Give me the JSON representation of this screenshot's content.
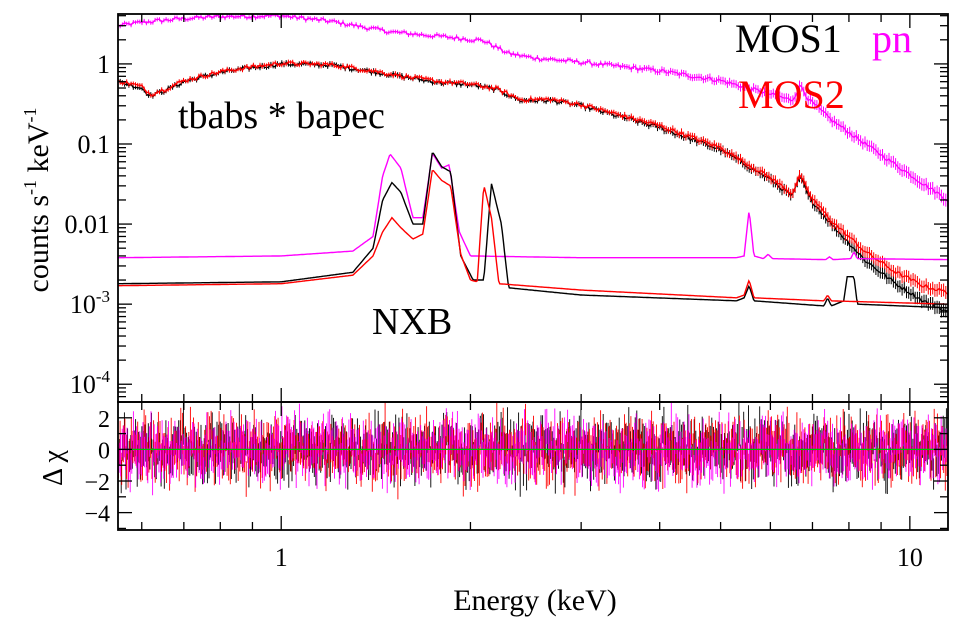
{
  "chart_data": {
    "type": "line",
    "xlabel": "Energy (keV)",
    "x_scale": "log",
    "xlim": [
      0.55,
      11.5
    ],
    "x_ticks": [
      {
        "value": 1,
        "label": "1"
      },
      {
        "value": 10,
        "label": "10"
      }
    ],
    "top_panel": {
      "ylabel_main": "counts s",
      "ylabel_exp1": "-1",
      "ylabel_mid": " keV",
      "ylabel_exp2": "-1",
      "y_scale": "log",
      "ylim": [
        6e-05,
        4.2
      ],
      "y_ticks": [
        {
          "value": 1,
          "label": "1"
        },
        {
          "value": 0.1,
          "label": "0.1"
        },
        {
          "value": 0.01,
          "label": "0.01"
        },
        {
          "value": 0.001,
          "base": "10",
          "exp": "-3"
        },
        {
          "value": 0.0001,
          "base": "10",
          "exp": "-4"
        }
      ],
      "annotations": {
        "model": "tbabs * bapec",
        "background": "NXB"
      },
      "legend": {
        "placement": "top-right",
        "entries": [
          {
            "label": "MOS1",
            "color": "#000000"
          },
          {
            "label": "pn",
            "color": "#ff00ff"
          },
          {
            "label": "MOS2",
            "color": "#ff0000"
          }
        ]
      },
      "series": [
        {
          "name": "pn",
          "role": "source",
          "color": "#ff00ff",
          "points": [
            [
              0.55,
              3.0
            ],
            [
              0.6,
              3.3
            ],
            [
              0.7,
              3.7
            ],
            [
              0.8,
              3.9
            ],
            [
              1.0,
              4.0
            ],
            [
              1.2,
              3.4
            ],
            [
              1.5,
              2.5
            ],
            [
              1.8,
              2.2
            ],
            [
              2.1,
              1.95
            ],
            [
              2.3,
              1.35
            ],
            [
              2.5,
              1.2
            ],
            [
              3.0,
              1.05
            ],
            [
              4.0,
              0.82
            ],
            [
              5.0,
              0.62
            ],
            [
              6.0,
              0.42
            ],
            [
              6.5,
              0.35
            ],
            [
              6.7,
              0.55
            ],
            [
              6.9,
              0.36
            ],
            [
              7.5,
              0.2
            ],
            [
              8.5,
              0.1
            ],
            [
              9.5,
              0.055
            ],
            [
              10.5,
              0.032
            ],
            [
              11.5,
              0.02
            ]
          ]
        },
        {
          "name": "MOS1",
          "role": "source",
          "color": "#000000",
          "points": [
            [
              0.55,
              0.6
            ],
            [
              0.6,
              0.5
            ],
            [
              0.62,
              0.4
            ],
            [
              0.66,
              0.48
            ],
            [
              0.7,
              0.6
            ],
            [
              0.8,
              0.78
            ],
            [
              0.9,
              0.9
            ],
            [
              1.0,
              1.0
            ],
            [
              1.2,
              0.97
            ],
            [
              1.4,
              0.8
            ],
            [
              1.6,
              0.67
            ],
            [
              1.8,
              0.58
            ],
            [
              2.0,
              0.55
            ],
            [
              2.2,
              0.48
            ],
            [
              2.4,
              0.35
            ],
            [
              2.7,
              0.35
            ],
            [
              3.0,
              0.3
            ],
            [
              4.0,
              0.16
            ],
            [
              5.0,
              0.085
            ],
            [
              6.0,
              0.036
            ],
            [
              6.5,
              0.022
            ],
            [
              6.7,
              0.04
            ],
            [
              6.9,
              0.022
            ],
            [
              7.5,
              0.01
            ],
            [
              8.5,
              0.0035
            ],
            [
              9.5,
              0.0018
            ],
            [
              10.5,
              0.0011
            ],
            [
              11.5,
              0.0008
            ]
          ]
        },
        {
          "name": "MOS2",
          "role": "source",
          "color": "#ff0000",
          "points": [
            [
              0.55,
              0.62
            ],
            [
              0.6,
              0.52
            ],
            [
              0.62,
              0.42
            ],
            [
              0.66,
              0.5
            ],
            [
              0.7,
              0.62
            ],
            [
              0.8,
              0.8
            ],
            [
              0.9,
              0.92
            ],
            [
              1.0,
              1.02
            ],
            [
              1.2,
              0.98
            ],
            [
              1.4,
              0.82
            ],
            [
              1.6,
              0.68
            ],
            [
              1.8,
              0.6
            ],
            [
              2.0,
              0.56
            ],
            [
              2.2,
              0.49
            ],
            [
              2.4,
              0.36
            ],
            [
              2.7,
              0.36
            ],
            [
              3.0,
              0.31
            ],
            [
              4.0,
              0.17
            ],
            [
              5.0,
              0.09
            ],
            [
              6.0,
              0.038
            ],
            [
              6.5,
              0.024
            ],
            [
              6.7,
              0.042
            ],
            [
              6.9,
              0.024
            ],
            [
              7.5,
              0.011
            ],
            [
              8.5,
              0.0045
            ],
            [
              9.5,
              0.0025
            ],
            [
              10.5,
              0.0017
            ],
            [
              11.5,
              0.0014
            ]
          ]
        },
        {
          "name": "pn",
          "role": "NXB",
          "color": "#ff00ff",
          "points": [
            [
              0.55,
              0.0038
            ],
            [
              1.0,
              0.004
            ],
            [
              1.3,
              0.0046
            ],
            [
              1.4,
              0.007
            ],
            [
              1.45,
              0.04
            ],
            [
              1.49,
              0.075
            ],
            [
              1.55,
              0.05
            ],
            [
              1.62,
              0.012
            ],
            [
              1.68,
              0.012
            ],
            [
              1.74,
              0.076
            ],
            [
              1.8,
              0.05
            ],
            [
              1.85,
              0.055
            ],
            [
              1.92,
              0.008
            ],
            [
              2.0,
              0.004
            ],
            [
              3.0,
              0.0038
            ],
            [
              5.3,
              0.0038
            ],
            [
              5.45,
              0.004
            ],
            [
              5.55,
              0.015
            ],
            [
              5.65,
              0.004
            ],
            [
              5.85,
              0.0037
            ],
            [
              5.95,
              0.0042
            ],
            [
              6.05,
              0.0037
            ],
            [
              7.35,
              0.0036
            ],
            [
              7.45,
              0.0039
            ],
            [
              7.55,
              0.0036
            ],
            [
              8.05,
              0.0037
            ],
            [
              8.15,
              0.0045
            ],
            [
              8.25,
              0.0037
            ],
            [
              11.5,
              0.0036
            ]
          ]
        },
        {
          "name": "MOS1",
          "role": "NXB",
          "color": "#000000",
          "points": [
            [
              0.55,
              0.0018
            ],
            [
              1.0,
              0.0019
            ],
            [
              1.3,
              0.0025
            ],
            [
              1.4,
              0.005
            ],
            [
              1.45,
              0.02
            ],
            [
              1.5,
              0.033
            ],
            [
              1.55,
              0.025
            ],
            [
              1.62,
              0.01
            ],
            [
              1.68,
              0.01
            ],
            [
              1.74,
              0.08
            ],
            [
              1.8,
              0.052
            ],
            [
              1.86,
              0.045
            ],
            [
              1.93,
              0.004
            ],
            [
              2.02,
              0.002
            ],
            [
              2.1,
              0.002
            ],
            [
              2.16,
              0.032
            ],
            [
              2.24,
              0.01
            ],
            [
              2.3,
              0.0016
            ],
            [
              3.0,
              0.0013
            ],
            [
              5.3,
              0.0011
            ],
            [
              5.45,
              0.0012
            ],
            [
              5.55,
              0.0017
            ],
            [
              5.65,
              0.0011
            ],
            [
              7.3,
              0.00095
            ],
            [
              7.4,
              0.0012
            ],
            [
              7.5,
              0.00095
            ],
            [
              7.85,
              0.0011
            ],
            [
              7.95,
              0.0022
            ],
            [
              8.15,
              0.0022
            ],
            [
              8.25,
              0.001
            ],
            [
              11.5,
              0.0009
            ]
          ]
        },
        {
          "name": "MOS2",
          "role": "NXB",
          "color": "#ff0000",
          "points": [
            [
              0.55,
              0.0017
            ],
            [
              1.0,
              0.0018
            ],
            [
              1.3,
              0.0023
            ],
            [
              1.4,
              0.004
            ],
            [
              1.45,
              0.008
            ],
            [
              1.5,
              0.012
            ],
            [
              1.55,
              0.009
            ],
            [
              1.62,
              0.0065
            ],
            [
              1.68,
              0.0075
            ],
            [
              1.74,
              0.048
            ],
            [
              1.8,
              0.035
            ],
            [
              1.86,
              0.03
            ],
            [
              1.93,
              0.0042
            ],
            [
              2.0,
              0.002
            ],
            [
              2.05,
              0.0019
            ],
            [
              2.1,
              0.031
            ],
            [
              2.16,
              0.012
            ],
            [
              2.22,
              0.0018
            ],
            [
              3.0,
              0.0015
            ],
            [
              5.3,
              0.0012
            ],
            [
              5.45,
              0.0013
            ],
            [
              5.55,
              0.002
            ],
            [
              5.65,
              0.0012
            ],
            [
              7.3,
              0.0011
            ],
            [
              7.4,
              0.0013
            ],
            [
              7.5,
              0.0011
            ],
            [
              11.5,
              0.001
            ]
          ]
        }
      ]
    },
    "bottom_panel": {
      "ylabel": "Δ χ",
      "ylim": [
        -5.1,
        3.0
      ],
      "y_ticks": [
        {
          "value": 2,
          "label": "2"
        },
        {
          "value": 0,
          "label": "0"
        },
        {
          "value": -2,
          "label": "−2"
        },
        {
          "value": -4,
          "label": "−4"
        }
      ],
      "reference_line": 0,
      "reference_color": "#00c000",
      "residual_spread": 1.0,
      "series_colors": [
        "#000000",
        "#ff0000",
        "#ff00ff"
      ]
    }
  }
}
